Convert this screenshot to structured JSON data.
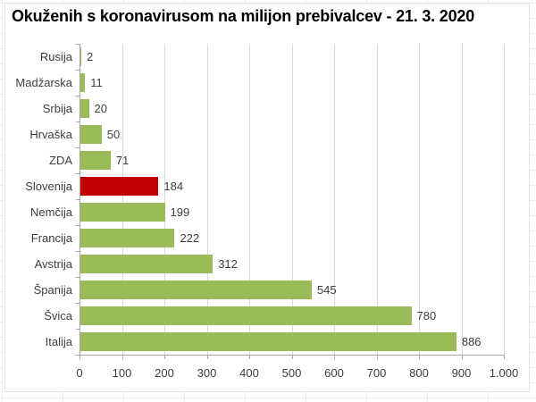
{
  "title": "Okuženih s koronavirusom na milijon prebivalcev - 21. 3. 2020",
  "colors": {
    "bar_default": "#9BBB59",
    "bar_highlight": "#C00000",
    "axis": "#A6A6A6",
    "gridline": "#D9D9D9",
    "label_text": "#3D3D3D",
    "title_text": "#000000",
    "sheet_grid": "#E9EEF4",
    "background": "#FFFFFF"
  },
  "chart_data": {
    "type": "bar",
    "orientation": "horizontal",
    "title": "Okuženih s koronavirusom na milijon prebivalcev - 21. 3. 2020",
    "categories": [
      "Rusija",
      "Madžarska",
      "Srbija",
      "Hrvaška",
      "ZDA",
      "Slovenija",
      "Nemčija",
      "Francija",
      "Avstrija",
      "Španija",
      "Švica",
      "Italija"
    ],
    "values": [
      2,
      11,
      20,
      50,
      71,
      184,
      199,
      222,
      312,
      545,
      780,
      886
    ],
    "data_labels": [
      "2",
      "11",
      "20",
      "50",
      "71",
      "184",
      "199",
      "222",
      "312",
      "545",
      "780",
      "886"
    ],
    "highlighted_category": "Slovenija",
    "xlim": [
      0,
      1000
    ],
    "x_tick_values": [
      0,
      100,
      200,
      300,
      400,
      500,
      600,
      700,
      800,
      900,
      1000
    ],
    "x_ticks": [
      "0",
      "100",
      "200",
      "300",
      "400",
      "500",
      "600",
      "700",
      "800",
      "900",
      "1.000"
    ],
    "xlabel": "",
    "ylabel": "",
    "grid": "vertical",
    "legend": "none"
  }
}
